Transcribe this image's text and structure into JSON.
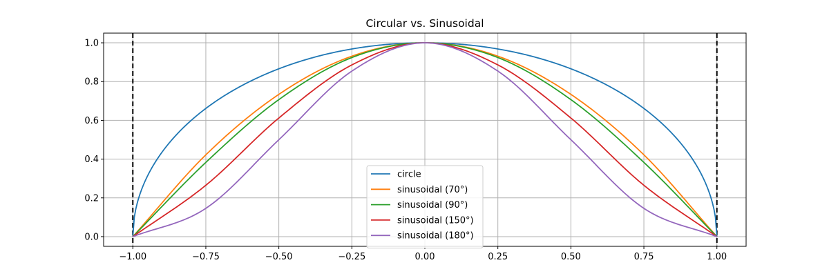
{
  "chart_data": {
    "type": "line",
    "title": "Circular vs. Sinusoidal",
    "xlabel": "",
    "ylabel": "",
    "xlim": [
      -1.1,
      1.1
    ],
    "ylim": [
      -0.05,
      1.05
    ],
    "xticks": [
      -1.0,
      -0.75,
      -0.5,
      -0.25,
      0.0,
      0.25,
      0.5,
      0.75,
      1.0
    ],
    "xtick_labels": [
      "−1.00",
      "−0.75",
      "−0.50",
      "−0.25",
      "0.00",
      "0.25",
      "0.50",
      "0.75",
      "1.00"
    ],
    "yticks": [
      0.0,
      0.2,
      0.4,
      0.6,
      0.8,
      1.0
    ],
    "ytick_labels": [
      "0.0",
      "0.2",
      "0.4",
      "0.6",
      "0.8",
      "1.0"
    ],
    "grid": true,
    "legend_position": "lower-center",
    "x": [
      -1.0,
      -0.75,
      -0.5,
      -0.25,
      0.0,
      0.25,
      0.5,
      0.75,
      1.0
    ],
    "series": [
      {
        "name": "circle",
        "color": "#1f77b4",
        "values": [
          0.0,
          0.661,
          0.866,
          0.968,
          1.0,
          0.968,
          0.866,
          0.661,
          0.0
        ]
      },
      {
        "name": "sinusoidal (70°)",
        "color": "#ff7f0e",
        "values": [
          0.0,
          0.422,
          0.734,
          0.931,
          1.0,
          0.931,
          0.734,
          0.422,
          0.0
        ]
      },
      {
        "name": "sinusoidal (90°)",
        "color": "#2ca02c",
        "values": [
          0.0,
          0.383,
          0.707,
          0.924,
          1.0,
          0.924,
          0.707,
          0.383,
          0.0
        ]
      },
      {
        "name": "sinusoidal (150°)",
        "color": "#d62728",
        "values": [
          0.0,
          0.265,
          0.612,
          0.886,
          1.0,
          0.886,
          0.612,
          0.265,
          0.0
        ]
      },
      {
        "name": "sinusoidal (180°)",
        "color": "#9467bd",
        "values": [
          0.0,
          0.146,
          0.5,
          0.854,
          1.0,
          0.854,
          0.5,
          0.146,
          0.0
        ]
      }
    ],
    "vlines": [
      {
        "x": -1.0,
        "color": "#000000",
        "style": "dashed"
      },
      {
        "x": 1.0,
        "color": "#000000",
        "style": "dashed"
      }
    ]
  }
}
